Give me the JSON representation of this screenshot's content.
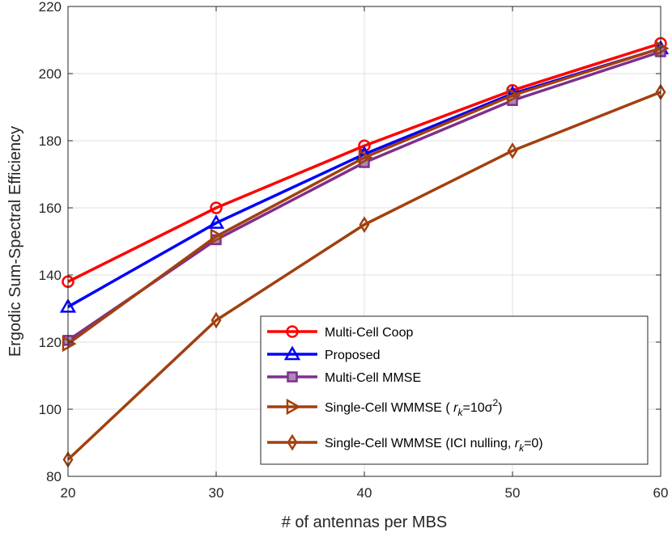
{
  "chart_data": {
    "type": "line",
    "title": "",
    "xlabel": "# of antennas per MBS",
    "ylabel": "Ergodic Sum-Spectral Efficiency",
    "x": [
      20,
      30,
      40,
      50,
      60
    ],
    "xlim": [
      20,
      60
    ],
    "ylim": [
      80,
      220
    ],
    "xticks": [
      "20",
      "30",
      "40",
      "50",
      "60"
    ],
    "yticks": [
      "80",
      "100",
      "120",
      "140",
      "160",
      "180",
      "200",
      "220"
    ],
    "grid": true,
    "legend_location": "bottom-right",
    "series": [
      {
        "name": "Multi-Cell Coop",
        "color": "#ff0000",
        "marker": "circle",
        "values": [
          138,
          160,
          178.5,
          195,
          209
        ]
      },
      {
        "name": "Proposed",
        "color": "#0000ff",
        "marker": "triangle-up",
        "values": [
          130.5,
          155.5,
          176,
          194,
          207.5
        ]
      },
      {
        "name": "Multi-Cell MMSE",
        "color": "#7e2f8e",
        "marker": "square",
        "values": [
          120.5,
          150.5,
          173.5,
          192,
          206.5
        ]
      },
      {
        "name": "Single-Cell WMMSE ( r_k=10σ²)",
        "color": "#a2400f",
        "marker": "triangle-right",
        "values": [
          119.5,
          151.5,
          175,
          193.5,
          207.5
        ]
      },
      {
        "name": "Single-Cell WMMSE (ICI nulling, r_k=0)",
        "color": "#a2400f",
        "marker": "diamond",
        "values": [
          85,
          126.5,
          155,
          177,
          194.5
        ]
      }
    ],
    "legend_parts": [
      {
        "prefix": "Multi-Cell Coop",
        "var": "",
        "sub": "",
        "mid": "",
        "sup": "",
        "suffix": ""
      },
      {
        "prefix": "Proposed",
        "var": "",
        "sub": "",
        "mid": "",
        "sup": "",
        "suffix": ""
      },
      {
        "prefix": "Multi-Cell MMSE",
        "var": "",
        "sub": "",
        "mid": "",
        "sup": "",
        "suffix": ""
      },
      {
        "prefix": "Single-Cell WMMSE (  ",
        "var": "r",
        "sub": "k",
        "mid": "=10σ",
        "sup": "2",
        "suffix": ")"
      },
      {
        "prefix": "Single-Cell WMMSE (ICI nulling,  ",
        "var": "r",
        "sub": "k",
        "mid": "=0)",
        "sup": "",
        "suffix": ""
      }
    ]
  }
}
